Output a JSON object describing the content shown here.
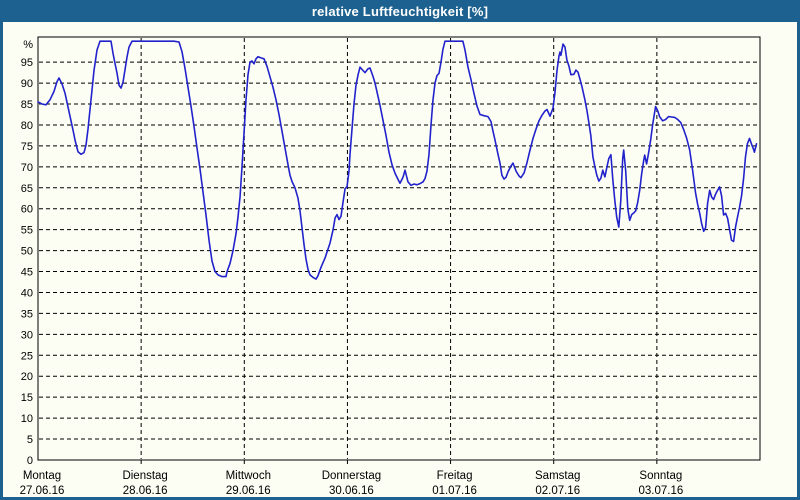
{
  "window": {
    "title": "relative Luftfeuchtigkeit [%]"
  },
  "colors": {
    "titlebar": "#1d6190",
    "border": "#1d6190",
    "background": "#fcfef4",
    "grid": "#000000",
    "line": "#2222cc",
    "text": "#000000"
  },
  "chart_data": {
    "type": "line",
    "title": "relative Luftfeuchtigkeit [%]",
    "ylabel": "%",
    "xlabel": "",
    "grid": true,
    "legend_position": "none",
    "ylim": [
      0,
      101
    ],
    "xlim_days": [
      0,
      7
    ],
    "y_ticks": [
      0,
      5,
      10,
      15,
      20,
      25,
      30,
      35,
      40,
      45,
      50,
      55,
      60,
      65,
      70,
      75,
      80,
      85,
      90,
      95
    ],
    "x_categories": [
      {
        "weekday": "Montag",
        "date": "27.06.16"
      },
      {
        "weekday": "Dienstag",
        "date": "28.06.16"
      },
      {
        "weekday": "Mittwoch",
        "date": "29.06.16"
      },
      {
        "weekday": "Donnerstag",
        "date": "30.06.16"
      },
      {
        "weekday": "Freitag",
        "date": "01.07.16"
      },
      {
        "weekday": "Samstag",
        "date": "02.07.16"
      },
      {
        "weekday": "Sonntag",
        "date": "03.07.16"
      }
    ],
    "series": [
      {
        "name": "relative Luftfeuchtigkeit",
        "unit": "%",
        "x_unit": "days_from_2016-06-27",
        "points": [
          [
            0.0,
            85.5
          ],
          [
            0.039,
            85.0
          ],
          [
            0.078,
            84.8
          ],
          [
            0.116,
            86.0
          ],
          [
            0.155,
            88.0
          ],
          [
            0.184,
            90.3
          ],
          [
            0.204,
            91.2
          ],
          [
            0.233,
            89.8
          ],
          [
            0.262,
            87.6
          ],
          [
            0.291,
            84.3
          ],
          [
            0.32,
            81.0
          ],
          [
            0.339,
            78.8
          ],
          [
            0.359,
            76.4
          ],
          [
            0.388,
            73.6
          ],
          [
            0.417,
            73.0
          ],
          [
            0.446,
            73.4
          ],
          [
            0.465,
            75.2
          ],
          [
            0.485,
            79.0
          ],
          [
            0.514,
            86.0
          ],
          [
            0.543,
            93.0
          ],
          [
            0.572,
            97.9
          ],
          [
            0.601,
            100.0
          ],
          [
            0.659,
            100.0
          ],
          [
            0.708,
            100.0
          ],
          [
            0.727,
            97.1
          ],
          [
            0.747,
            94.7
          ],
          [
            0.766,
            92.4
          ],
          [
            0.785,
            89.5
          ],
          [
            0.805,
            88.8
          ],
          [
            0.824,
            90.2
          ],
          [
            0.843,
            93.0
          ],
          [
            0.863,
            96.2
          ],
          [
            0.882,
            98.6
          ],
          [
            0.911,
            100.0
          ],
          [
            0.96,
            100.0
          ],
          [
            1.047,
            100.0
          ],
          [
            1.134,
            100.0
          ],
          [
            1.231,
            100.0
          ],
          [
            1.319,
            100.0
          ],
          [
            1.367,
            99.8
          ],
          [
            1.396,
            97.5
          ],
          [
            1.425,
            93.5
          ],
          [
            1.454,
            89.0
          ],
          [
            1.483,
            84.5
          ],
          [
            1.513,
            79.5
          ],
          [
            1.542,
            74.5
          ],
          [
            1.571,
            69.5
          ],
          [
            1.6,
            64.0
          ],
          [
            1.629,
            58.5
          ],
          [
            1.658,
            52.5
          ],
          [
            1.687,
            47.5
          ],
          [
            1.716,
            45.0
          ],
          [
            1.745,
            44.2
          ],
          [
            1.784,
            43.8
          ],
          [
            1.823,
            43.8
          ],
          [
            1.833,
            45.0
          ],
          [
            1.862,
            47.0
          ],
          [
            1.891,
            50.0
          ],
          [
            1.92,
            54.0
          ],
          [
            1.939,
            58.0
          ],
          [
            1.959,
            63.0
          ],
          [
            1.978,
            70.0
          ],
          [
            1.997,
            78.0
          ],
          [
            2.017,
            86.0
          ],
          [
            2.036,
            92.0
          ],
          [
            2.055,
            95.0
          ],
          [
            2.075,
            95.3
          ],
          [
            2.094,
            94.6
          ],
          [
            2.114,
            95.8
          ],
          [
            2.133,
            96.3
          ],
          [
            2.162,
            96.0
          ],
          [
            2.191,
            95.8
          ],
          [
            2.22,
            94.0
          ],
          [
            2.249,
            91.5
          ],
          [
            2.278,
            89.0
          ],
          [
            2.307,
            86.0
          ],
          [
            2.337,
            82.5
          ],
          [
            2.366,
            78.5
          ],
          [
            2.395,
            74.5
          ],
          [
            2.424,
            70.5
          ],
          [
            2.443,
            68.0
          ],
          [
            2.463,
            66.5
          ],
          [
            2.492,
            65.0
          ],
          [
            2.521,
            62.5
          ],
          [
            2.54,
            59.5
          ],
          [
            2.56,
            55.5
          ],
          [
            2.579,
            51.5
          ],
          [
            2.598,
            48.0
          ],
          [
            2.618,
            45.5
          ],
          [
            2.637,
            44.2
          ],
          [
            2.666,
            43.6
          ],
          [
            2.695,
            43.2
          ],
          [
            2.715,
            44.0
          ],
          [
            2.744,
            46.0
          ],
          [
            2.783,
            48.2
          ],
          [
            2.831,
            51.8
          ],
          [
            2.86,
            54.9
          ],
          [
            2.88,
            57.8
          ],
          [
            2.899,
            58.6
          ],
          [
            2.918,
            57.4
          ],
          [
            2.938,
            58.2
          ],
          [
            2.957,
            61.5
          ],
          [
            2.977,
            64.8
          ],
          [
            2.996,
            65.2
          ],
          [
            3.015,
            69.0
          ],
          [
            3.025,
            73.0
          ],
          [
            3.044,
            79.0
          ],
          [
            3.064,
            85.0
          ],
          [
            3.083,
            89.5
          ],
          [
            3.103,
            92.0
          ],
          [
            3.122,
            93.8
          ],
          [
            3.151,
            93.0
          ],
          [
            3.17,
            92.5
          ],
          [
            3.199,
            93.4
          ],
          [
            3.219,
            93.6
          ],
          [
            3.248,
            91.6
          ],
          [
            3.267,
            90.0
          ],
          [
            3.287,
            87.9
          ],
          [
            3.316,
            84.7
          ],
          [
            3.345,
            81.1
          ],
          [
            3.374,
            77.5
          ],
          [
            3.403,
            73.5
          ],
          [
            3.432,
            70.5
          ],
          [
            3.461,
            68.5
          ],
          [
            3.49,
            67.0
          ],
          [
            3.51,
            66.1
          ],
          [
            3.539,
            67.5
          ],
          [
            3.558,
            69.2
          ],
          [
            3.587,
            66.4
          ],
          [
            3.616,
            65.6
          ],
          [
            3.645,
            65.9
          ],
          [
            3.675,
            65.7
          ],
          [
            3.704,
            66.0
          ],
          [
            3.733,
            66.4
          ],
          [
            3.752,
            67.2
          ],
          [
            3.771,
            69.0
          ],
          [
            3.791,
            73.0
          ],
          [
            3.81,
            80.0
          ],
          [
            3.83,
            86.0
          ],
          [
            3.849,
            90.0
          ],
          [
            3.868,
            91.8
          ],
          [
            3.888,
            92.3
          ],
          [
            3.907,
            95.0
          ],
          [
            3.926,
            98.0
          ],
          [
            3.946,
            100.0
          ],
          [
            3.994,
            100.0
          ],
          [
            4.043,
            100.0
          ],
          [
            4.091,
            100.0
          ],
          [
            4.12,
            100.0
          ],
          [
            4.14,
            97.9
          ],
          [
            4.169,
            93.8
          ],
          [
            4.198,
            90.8
          ],
          [
            4.227,
            87.5
          ],
          [
            4.256,
            84.5
          ],
          [
            4.285,
            82.5
          ],
          [
            4.324,
            82.2
          ],
          [
            4.363,
            82.0
          ],
          [
            4.392,
            80.8
          ],
          [
            4.411,
            78.5
          ],
          [
            4.431,
            76.4
          ],
          [
            4.46,
            73.0
          ],
          [
            4.479,
            70.9
          ],
          [
            4.498,
            68.0
          ],
          [
            4.518,
            67.1
          ],
          [
            4.537,
            67.5
          ],
          [
            4.557,
            68.8
          ],
          [
            4.586,
            70.2
          ],
          [
            4.605,
            70.9
          ],
          [
            4.634,
            69.0
          ],
          [
            4.663,
            67.8
          ],
          [
            4.682,
            67.4
          ],
          [
            4.712,
            68.5
          ],
          [
            4.741,
            71.0
          ],
          [
            4.77,
            74.0
          ],
          [
            4.799,
            76.8
          ],
          [
            4.828,
            79.0
          ],
          [
            4.857,
            81.0
          ],
          [
            4.886,
            82.3
          ],
          [
            4.915,
            83.3
          ],
          [
            4.935,
            83.7
          ],
          [
            4.964,
            82.1
          ],
          [
            4.993,
            84.0
          ],
          [
            5.012,
            87.8
          ],
          [
            5.032,
            93.0
          ],
          [
            5.051,
            96.5
          ],
          [
            5.061,
            97.4
          ],
          [
            5.07,
            96.6
          ],
          [
            5.09,
            99.3
          ],
          [
            5.109,
            98.6
          ],
          [
            5.128,
            95.5
          ],
          [
            5.148,
            94.0
          ],
          [
            5.167,
            92.0
          ],
          [
            5.196,
            92.1
          ],
          [
            5.215,
            93.1
          ],
          [
            5.235,
            92.6
          ],
          [
            5.254,
            91.0
          ],
          [
            5.273,
            89.2
          ],
          [
            5.302,
            86.0
          ],
          [
            5.322,
            83.5
          ],
          [
            5.341,
            80.5
          ],
          [
            5.36,
            77.5
          ],
          [
            5.38,
            72.4
          ],
          [
            5.399,
            70.0
          ],
          [
            5.418,
            68.0
          ],
          [
            5.438,
            66.6
          ],
          [
            5.457,
            67.3
          ],
          [
            5.476,
            69.2
          ],
          [
            5.496,
            67.6
          ],
          [
            5.515,
            69.8
          ],
          [
            5.534,
            72.0
          ],
          [
            5.554,
            72.9
          ],
          [
            5.573,
            67.0
          ],
          [
            5.592,
            62.0
          ],
          [
            5.611,
            58.0
          ],
          [
            5.631,
            55.6
          ],
          [
            5.65,
            62.0
          ],
          [
            5.669,
            72.0
          ],
          [
            5.679,
            74.0
          ],
          [
            5.698,
            69.0
          ],
          [
            5.718,
            60.0
          ],
          [
            5.737,
            57.2
          ],
          [
            5.756,
            58.6
          ],
          [
            5.776,
            59.0
          ],
          [
            5.795,
            59.5
          ],
          [
            5.814,
            61.5
          ],
          [
            5.834,
            64.4
          ],
          [
            5.853,
            68.4
          ],
          [
            5.872,
            71.5
          ],
          [
            5.882,
            72.8
          ],
          [
            5.901,
            70.7
          ],
          [
            5.921,
            73.5
          ],
          [
            5.94,
            76.5
          ],
          [
            5.959,
            80.0
          ],
          [
            5.979,
            83.1
          ],
          [
            5.988,
            84.4
          ],
          [
            6.008,
            83.4
          ],
          [
            6.027,
            82.0
          ],
          [
            6.056,
            81.0
          ],
          [
            6.085,
            81.3
          ],
          [
            6.114,
            82.0
          ],
          [
            6.143,
            81.9
          ],
          [
            6.173,
            81.8
          ],
          [
            6.202,
            81.3
          ],
          [
            6.231,
            80.6
          ],
          [
            6.26,
            78.9
          ],
          [
            6.289,
            76.8
          ],
          [
            6.318,
            74.0
          ],
          [
            6.347,
            69.2
          ],
          [
            6.376,
            63.7
          ],
          [
            6.396,
            61.0
          ],
          [
            6.415,
            58.9
          ],
          [
            6.434,
            56.5
          ],
          [
            6.454,
            54.6
          ],
          [
            6.473,
            55.5
          ],
          [
            6.492,
            61.3
          ],
          [
            6.512,
            64.4
          ],
          [
            6.531,
            62.8
          ],
          [
            6.55,
            62.2
          ],
          [
            6.57,
            63.5
          ],
          [
            6.589,
            64.4
          ],
          [
            6.608,
            65.2
          ],
          [
            6.628,
            63.0
          ],
          [
            6.647,
            58.5
          ],
          [
            6.666,
            58.9
          ],
          [
            6.686,
            57.7
          ],
          [
            6.705,
            55.0
          ],
          [
            6.724,
            52.5
          ],
          [
            6.744,
            52.2
          ],
          [
            6.763,
            55.7
          ],
          [
            6.782,
            58.0
          ],
          [
            6.802,
            60.4
          ],
          [
            6.821,
            63.0
          ],
          [
            6.84,
            67.0
          ],
          [
            6.859,
            72.4
          ],
          [
            6.879,
            75.6
          ],
          [
            6.898,
            76.8
          ],
          [
            6.917,
            75.5
          ],
          [
            6.937,
            74.2
          ],
          [
            6.946,
            73.5
          ],
          [
            6.966,
            75.5
          ]
        ]
      }
    ]
  }
}
